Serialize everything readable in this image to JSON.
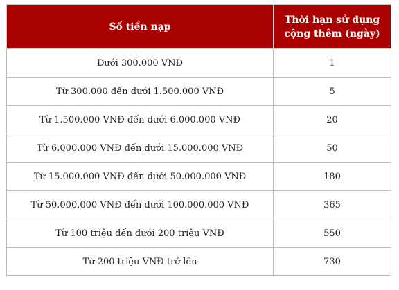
{
  "table": {
    "headers": [
      "Số tiền nạp",
      "Thời hạn sử dụng cộng thêm (ngày)"
    ],
    "rows": [
      {
        "amount": "Dưới 300.000 VNĐ",
        "days": "1"
      },
      {
        "amount": "Từ 300.000 đến dưới 1.500.000 VNĐ",
        "days": "5"
      },
      {
        "amount": "Từ 1.500.000 VNĐ đến dưới 6.000.000 VNĐ",
        "days": "20"
      },
      {
        "amount": "Từ 6.000.000 VNĐ đến dưới 15.000.000 VNĐ",
        "days": "50"
      },
      {
        "amount": "Từ 15.000.000 VNĐ đến dưới 50.000.000 VNĐ",
        "days": "180"
      },
      {
        "amount": "Từ 50.000.000 VNĐ đến dưới 100.000.000 VNĐ",
        "days": "365"
      },
      {
        "amount": "Từ 100 triệu đến dưới 200 triệu VNĐ",
        "days": "550"
      },
      {
        "amount": "Từ 200 triệu VNĐ trở lên",
        "days": "730"
      }
    ]
  },
  "colors": {
    "header_bg": "#a90000",
    "header_text": "#ffffff",
    "border": "#bdbdbd"
  }
}
